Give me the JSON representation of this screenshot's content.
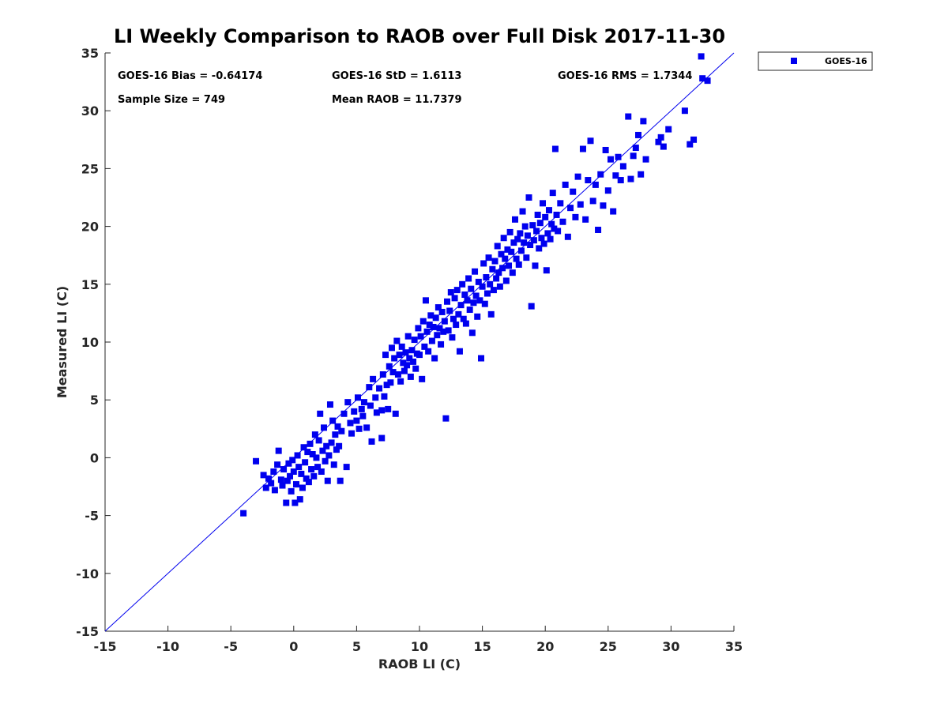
{
  "chart_data": {
    "type": "scatter",
    "title": "LI Weekly Comparison to RAOB over Full Disk 2017-11-30",
    "xlabel": "RAOB LI (C)",
    "ylabel": "Measured LI (C)",
    "xlim": [
      -15,
      35
    ],
    "ylim": [
      -15,
      35
    ],
    "xticks": [
      -15,
      -10,
      -5,
      0,
      5,
      10,
      15,
      20,
      25,
      30,
      35
    ],
    "yticks": [
      -15,
      -10,
      -5,
      0,
      5,
      10,
      15,
      20,
      25,
      30,
      35
    ],
    "xtick_labels": [
      "-15",
      "-10",
      "-5",
      "0",
      "5",
      "10",
      "15",
      "20",
      "25",
      "30",
      "35"
    ],
    "ytick_labels": [
      "-15",
      "-10",
      "-5",
      "0",
      "5",
      "10",
      "15",
      "20",
      "25",
      "30",
      "35"
    ],
    "grid": false,
    "legend": {
      "position": "outside-top-right",
      "entries": [
        "GOES-16"
      ]
    },
    "reference_line": {
      "type": "identity",
      "x": [
        -15,
        35
      ],
      "y": [
        -15,
        35
      ],
      "color": "#0000ee"
    },
    "annotations": {
      "bias": "GOES-16 Bias = -0.64174",
      "std": "GOES-16 StD = 1.6113",
      "rms": "GOES-16 RMS = 1.7344",
      "sample_size": "Sample Size = 749",
      "mean_raob": "Mean RAOB = 11.7379"
    },
    "series": [
      {
        "name": "GOES-16",
        "color": "#0000ee",
        "marker": "square",
        "points": [
          [
            -4.0,
            -4.8
          ],
          [
            -3.0,
            -0.3
          ],
          [
            -2.4,
            -1.5
          ],
          [
            -2.2,
            -2.6
          ],
          [
            -2.0,
            -1.8
          ],
          [
            -1.8,
            -2.2
          ],
          [
            -1.6,
            -1.2
          ],
          [
            -1.5,
            -2.8
          ],
          [
            -1.3,
            -0.6
          ],
          [
            -1.2,
            0.6
          ],
          [
            -1.0,
            -1.9
          ],
          [
            -0.9,
            -2.4
          ],
          [
            -0.8,
            -1.0
          ],
          [
            -0.6,
            -3.9
          ],
          [
            -0.5,
            -2.0
          ],
          [
            -0.4,
            -0.5
          ],
          [
            -0.3,
            -1.6
          ],
          [
            -0.2,
            -2.9
          ],
          [
            -0.1,
            -0.2
          ],
          [
            0.0,
            -1.2
          ],
          [
            0.1,
            -3.9
          ],
          [
            0.2,
            -2.3
          ],
          [
            0.3,
            0.2
          ],
          [
            0.4,
            -0.8
          ],
          [
            0.5,
            -3.6
          ],
          [
            0.6,
            -1.4
          ],
          [
            0.7,
            -2.6
          ],
          [
            0.8,
            0.9
          ],
          [
            0.9,
            -0.4
          ],
          [
            1.0,
            -1.8
          ],
          [
            1.1,
            0.5
          ],
          [
            1.2,
            -2.1
          ],
          [
            1.3,
            1.2
          ],
          [
            1.4,
            -1.0
          ],
          [
            1.5,
            0.3
          ],
          [
            1.6,
            -1.6
          ],
          [
            1.7,
            2.0
          ],
          [
            1.8,
            0.0
          ],
          [
            1.9,
            -0.8
          ],
          [
            2.0,
            1.5
          ],
          [
            2.1,
            3.8
          ],
          [
            2.2,
            -1.2
          ],
          [
            2.3,
            0.6
          ],
          [
            2.4,
            2.6
          ],
          [
            2.5,
            -0.3
          ],
          [
            2.6,
            1.0
          ],
          [
            2.7,
            -2.0
          ],
          [
            2.8,
            0.2
          ],
          [
            2.9,
            4.6
          ],
          [
            3.0,
            1.3
          ],
          [
            3.1,
            3.2
          ],
          [
            3.2,
            -0.6
          ],
          [
            3.3,
            2.0
          ],
          [
            3.4,
            0.7
          ],
          [
            3.5,
            2.7
          ],
          [
            3.6,
            1.0
          ],
          [
            3.7,
            -2.0
          ],
          [
            3.8,
            2.3
          ],
          [
            4.0,
            3.8
          ],
          [
            4.2,
            -0.8
          ],
          [
            4.3,
            4.8
          ],
          [
            4.5,
            3.0
          ],
          [
            4.6,
            2.1
          ],
          [
            4.8,
            4.0
          ],
          [
            5.0,
            3.2
          ],
          [
            5.1,
            5.2
          ],
          [
            5.2,
            2.5
          ],
          [
            5.4,
            4.2
          ],
          [
            5.5,
            3.6
          ],
          [
            5.6,
            4.8
          ],
          [
            5.8,
            2.6
          ],
          [
            6.0,
            6.1
          ],
          [
            6.1,
            4.5
          ],
          [
            6.2,
            1.4
          ],
          [
            6.3,
            6.8
          ],
          [
            6.5,
            5.2
          ],
          [
            6.6,
            3.9
          ],
          [
            6.8,
            6.0
          ],
          [
            7.0,
            4.1
          ],
          [
            7.0,
            1.7
          ],
          [
            7.1,
            7.2
          ],
          [
            7.2,
            5.3
          ],
          [
            7.3,
            8.9
          ],
          [
            7.4,
            6.3
          ],
          [
            7.5,
            4.2
          ],
          [
            7.6,
            7.9
          ],
          [
            7.7,
            6.5
          ],
          [
            7.8,
            9.5
          ],
          [
            7.9,
            7.4
          ],
          [
            8.0,
            8.6
          ],
          [
            8.1,
            3.8
          ],
          [
            8.2,
            10.1
          ],
          [
            8.3,
            7.2
          ],
          [
            8.4,
            8.9
          ],
          [
            8.5,
            6.6
          ],
          [
            8.6,
            9.6
          ],
          [
            8.7,
            8.2
          ],
          [
            8.8,
            7.5
          ],
          [
            8.9,
            9.1
          ],
          [
            9.0,
            8.0
          ],
          [
            9.1,
            10.5
          ],
          [
            9.2,
            8.6
          ],
          [
            9.3,
            7.0
          ],
          [
            9.4,
            9.3
          ],
          [
            9.5,
            8.3
          ],
          [
            9.6,
            10.2
          ],
          [
            9.7,
            7.7
          ],
          [
            9.8,
            9.0
          ],
          [
            9.9,
            11.2
          ],
          [
            10.0,
            8.9
          ],
          [
            10.1,
            10.5
          ],
          [
            10.2,
            6.8
          ],
          [
            10.3,
            11.8
          ],
          [
            10.4,
            9.6
          ],
          [
            10.5,
            13.6
          ],
          [
            10.6,
            10.9
          ],
          [
            10.7,
            9.2
          ],
          [
            10.8,
            11.5
          ],
          [
            10.9,
            12.3
          ],
          [
            11.0,
            10.1
          ],
          [
            11.1,
            11.3
          ],
          [
            11.2,
            8.6
          ],
          [
            11.3,
            12.1
          ],
          [
            11.4,
            10.6
          ],
          [
            11.5,
            13.0
          ],
          [
            11.6,
            11.2
          ],
          [
            11.7,
            9.8
          ],
          [
            11.8,
            12.6
          ],
          [
            11.9,
            10.9
          ],
          [
            12.0,
            11.8
          ],
          [
            12.1,
            3.4
          ],
          [
            12.2,
            13.5
          ],
          [
            12.3,
            11.0
          ],
          [
            12.4,
            12.7
          ],
          [
            12.5,
            14.3
          ],
          [
            12.6,
            10.4
          ],
          [
            12.7,
            12.0
          ],
          [
            12.8,
            13.8
          ],
          [
            12.9,
            11.5
          ],
          [
            13.0,
            14.5
          ],
          [
            13.1,
            12.4
          ],
          [
            13.2,
            9.2
          ],
          [
            13.3,
            13.2
          ],
          [
            13.4,
            15.0
          ],
          [
            13.5,
            12.0
          ],
          [
            13.6,
            14.1
          ],
          [
            13.7,
            11.6
          ],
          [
            13.8,
            13.6
          ],
          [
            13.9,
            15.5
          ],
          [
            14.0,
            12.8
          ],
          [
            14.1,
            14.6
          ],
          [
            14.2,
            10.8
          ],
          [
            14.3,
            13.4
          ],
          [
            14.4,
            16.1
          ],
          [
            14.5,
            14.0
          ],
          [
            14.6,
            12.2
          ],
          [
            14.7,
            15.2
          ],
          [
            14.8,
            13.6
          ],
          [
            14.9,
            8.6
          ],
          [
            15.0,
            14.8
          ],
          [
            15.1,
            16.8
          ],
          [
            15.2,
            13.3
          ],
          [
            15.3,
            15.6
          ],
          [
            15.4,
            14.2
          ],
          [
            15.5,
            17.3
          ],
          [
            15.6,
            15.0
          ],
          [
            15.7,
            12.4
          ],
          [
            15.8,
            16.3
          ],
          [
            15.9,
            14.5
          ],
          [
            16.0,
            17.0
          ],
          [
            16.1,
            15.5
          ],
          [
            16.2,
            18.3
          ],
          [
            16.3,
            16.0
          ],
          [
            16.4,
            14.8
          ],
          [
            16.5,
            17.6
          ],
          [
            16.6,
            16.4
          ],
          [
            16.7,
            19.0
          ],
          [
            16.8,
            17.2
          ],
          [
            16.9,
            15.3
          ],
          [
            17.0,
            18.0
          ],
          [
            17.1,
            16.6
          ],
          [
            17.2,
            19.5
          ],
          [
            17.3,
            17.8
          ],
          [
            17.4,
            16.0
          ],
          [
            17.5,
            18.6
          ],
          [
            17.6,
            20.6
          ],
          [
            17.7,
            17.2
          ],
          [
            17.8,
            18.9
          ],
          [
            17.9,
            16.7
          ],
          [
            18.0,
            19.4
          ],
          [
            18.1,
            17.9
          ],
          [
            18.2,
            21.3
          ],
          [
            18.3,
            18.6
          ],
          [
            18.4,
            20.0
          ],
          [
            18.5,
            17.3
          ],
          [
            18.6,
            19.2
          ],
          [
            18.7,
            22.5
          ],
          [
            18.8,
            18.4
          ],
          [
            18.9,
            13.1
          ],
          [
            19.0,
            20.1
          ],
          [
            19.1,
            18.8
          ],
          [
            19.2,
            16.6
          ],
          [
            19.3,
            19.6
          ],
          [
            19.4,
            21.0
          ],
          [
            19.5,
            18.1
          ],
          [
            19.6,
            20.3
          ],
          [
            19.7,
            19.0
          ],
          [
            19.8,
            22.0
          ],
          [
            19.9,
            18.5
          ],
          [
            20.0,
            20.8
          ],
          [
            20.1,
            16.2
          ],
          [
            20.2,
            19.4
          ],
          [
            20.3,
            21.4
          ],
          [
            20.4,
            18.9
          ],
          [
            20.5,
            20.2
          ],
          [
            20.6,
            22.9
          ],
          [
            20.7,
            19.8
          ],
          [
            20.8,
            26.7
          ],
          [
            20.9,
            21.0
          ],
          [
            21.0,
            19.6
          ],
          [
            21.2,
            22.0
          ],
          [
            21.4,
            20.4
          ],
          [
            21.6,
            23.6
          ],
          [
            21.8,
            19.1
          ],
          [
            22.0,
            21.6
          ],
          [
            22.2,
            23.0
          ],
          [
            22.4,
            20.8
          ],
          [
            22.6,
            24.3
          ],
          [
            22.8,
            21.9
          ],
          [
            23.0,
            26.7
          ],
          [
            23.2,
            20.6
          ],
          [
            23.4,
            24.0
          ],
          [
            23.6,
            27.4
          ],
          [
            23.8,
            22.2
          ],
          [
            24.0,
            23.6
          ],
          [
            24.2,
            19.7
          ],
          [
            24.4,
            24.5
          ],
          [
            24.6,
            21.8
          ],
          [
            24.8,
            26.6
          ],
          [
            25.0,
            23.1
          ],
          [
            25.2,
            25.8
          ],
          [
            25.4,
            21.3
          ],
          [
            25.6,
            24.4
          ],
          [
            25.8,
            26.0
          ],
          [
            26.0,
            24.0
          ],
          [
            26.2,
            25.2
          ],
          [
            26.6,
            29.5
          ],
          [
            26.8,
            24.1
          ],
          [
            27.0,
            26.1
          ],
          [
            27.2,
            26.8
          ],
          [
            27.4,
            27.9
          ],
          [
            27.6,
            24.5
          ],
          [
            27.8,
            29.1
          ],
          [
            28.0,
            25.8
          ],
          [
            29.0,
            27.3
          ],
          [
            29.2,
            27.7
          ],
          [
            29.4,
            26.9
          ],
          [
            29.8,
            28.4
          ],
          [
            31.1,
            30.0
          ],
          [
            31.5,
            27.1
          ],
          [
            31.8,
            27.5
          ],
          [
            32.4,
            34.7
          ],
          [
            32.5,
            32.8
          ],
          [
            32.9,
            32.6
          ]
        ]
      }
    ]
  }
}
